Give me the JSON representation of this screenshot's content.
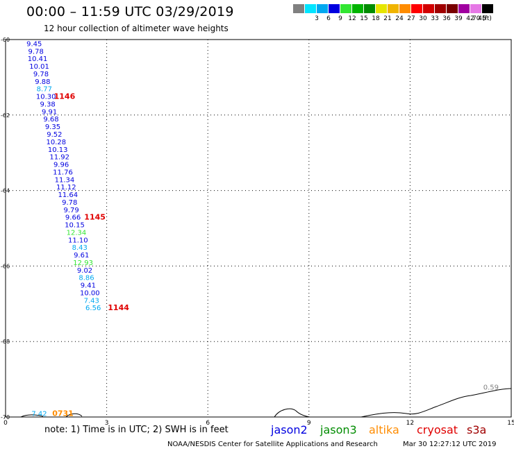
{
  "header": {
    "title": "00:00 – 11:59 UTC 03/29/2019",
    "subtitle": "12 hour collection of altimeter wave heights"
  },
  "colorbar": {
    "unit": "70 (ft)",
    "swatches": [
      {
        "color": "#808080",
        "label": ""
      },
      {
        "color": "#00e5ff",
        "label": "3"
      },
      {
        "color": "#00a8f0",
        "label": "6"
      },
      {
        "color": "#0000e0",
        "label": "9"
      },
      {
        "color": "#32e632",
        "label": "12"
      },
      {
        "color": "#00b400",
        "label": "15"
      },
      {
        "color": "#008c00",
        "label": "18"
      },
      {
        "color": "#e6e600",
        "label": "21"
      },
      {
        "color": "#f0b400",
        "label": "24"
      },
      {
        "color": "#ff8c00",
        "label": "27"
      },
      {
        "color": "#ff0000",
        "label": "30"
      },
      {
        "color": "#d20000",
        "label": "33"
      },
      {
        "color": "#a00000",
        "label": "36"
      },
      {
        "color": "#780000",
        "label": "39"
      },
      {
        "color": "#a000a0",
        "label": "42"
      },
      {
        "color": "#e678e6",
        "label": "45"
      },
      {
        "color": "#000000",
        "label": ""
      }
    ]
  },
  "chart_data": {
    "type": "scatter",
    "title": "00:00 – 11:59 UTC 03/29/2019",
    "subtitle": "12 hour collection of altimeter wave heights",
    "xlim": [
      0,
      15
    ],
    "ylim": [
      -70,
      -60
    ],
    "x_ticks": [
      "0",
      "3",
      "6",
      "9",
      "12",
      "15"
    ],
    "y_ticks": [
      "-60",
      "-62",
      "-64",
      "-66",
      "-68",
      "-70"
    ],
    "grid": true,
    "points": [
      {
        "x": 0.85,
        "y": -60.1,
        "value": "9.45",
        "color": "#0000e0"
      },
      {
        "x": 0.9,
        "y": -60.3,
        "value": "9.78",
        "color": "#0000e0"
      },
      {
        "x": 0.95,
        "y": -60.5,
        "value": "10.41",
        "color": "#0000e0"
      },
      {
        "x": 1.0,
        "y": -60.7,
        "value": "10.01",
        "color": "#0000e0"
      },
      {
        "x": 1.05,
        "y": -60.9,
        "value": "9.78",
        "color": "#0000e0"
      },
      {
        "x": 1.1,
        "y": -61.1,
        "value": "9.88",
        "color": "#0000e0"
      },
      {
        "x": 1.15,
        "y": -61.3,
        "value": "8.77",
        "color": "#00a8f0"
      },
      {
        "x": 1.2,
        "y": -61.5,
        "value": "10.30",
        "color": "#0000e0"
      },
      {
        "x": 1.25,
        "y": -61.7,
        "value": "9.38",
        "color": "#0000e0"
      },
      {
        "x": 1.3,
        "y": -61.9,
        "value": "9.91",
        "color": "#0000e0"
      },
      {
        "x": 1.35,
        "y": -62.1,
        "value": "9.68",
        "color": "#0000e0"
      },
      {
        "x": 1.4,
        "y": -62.3,
        "value": "9.35",
        "color": "#0000e0"
      },
      {
        "x": 1.45,
        "y": -62.5,
        "value": "9.52",
        "color": "#0000e0"
      },
      {
        "x": 1.5,
        "y": -62.7,
        "value": "10.28",
        "color": "#0000e0"
      },
      {
        "x": 1.55,
        "y": -62.9,
        "value": "10.13",
        "color": "#0000e0"
      },
      {
        "x": 1.6,
        "y": -63.1,
        "value": "11.92",
        "color": "#0000e0"
      },
      {
        "x": 1.65,
        "y": -63.3,
        "value": "9.96",
        "color": "#0000e0"
      },
      {
        "x": 1.7,
        "y": -63.5,
        "value": "11.76",
        "color": "#0000e0"
      },
      {
        "x": 1.75,
        "y": -63.7,
        "value": "11.34",
        "color": "#0000e0"
      },
      {
        "x": 1.8,
        "y": -63.9,
        "value": "11.12",
        "color": "#0000e0"
      },
      {
        "x": 1.85,
        "y": -64.1,
        "value": "11.64",
        "color": "#0000e0"
      },
      {
        "x": 1.9,
        "y": -64.3,
        "value": "9.78",
        "color": "#0000e0"
      },
      {
        "x": 1.95,
        "y": -64.5,
        "value": "9.79",
        "color": "#0000e0"
      },
      {
        "x": 2.0,
        "y": -64.7,
        "value": "9.66",
        "color": "#0000e0"
      },
      {
        "x": 2.05,
        "y": -64.9,
        "value": "10.15",
        "color": "#0000e0"
      },
      {
        "x": 2.1,
        "y": -65.1,
        "value": "12.34",
        "color": "#32e632"
      },
      {
        "x": 2.15,
        "y": -65.3,
        "value": "11.10",
        "color": "#0000e0"
      },
      {
        "x": 2.2,
        "y": -65.5,
        "value": "8.43",
        "color": "#00a8f0"
      },
      {
        "x": 2.25,
        "y": -65.7,
        "value": "9.61",
        "color": "#0000e0"
      },
      {
        "x": 2.3,
        "y": -65.9,
        "value": "12.93",
        "color": "#32e632"
      },
      {
        "x": 2.35,
        "y": -66.1,
        "value": "9.02",
        "color": "#0000e0"
      },
      {
        "x": 2.4,
        "y": -66.3,
        "value": "8.86",
        "color": "#00a8f0"
      },
      {
        "x": 2.45,
        "y": -66.5,
        "value": "9.41",
        "color": "#0000e0"
      },
      {
        "x": 2.5,
        "y": -66.7,
        "value": "10.00",
        "color": "#0000e0"
      },
      {
        "x": 2.55,
        "y": -66.9,
        "value": "7.43",
        "color": "#00a8f0"
      },
      {
        "x": 2.6,
        "y": -67.1,
        "value": "6.56",
        "color": "#00a8f0"
      },
      {
        "x": 1.0,
        "y": -69.9,
        "value": "7.42",
        "color": "#00a8f0"
      },
      {
        "x": 14.4,
        "y": -69.2,
        "value": "0.59",
        "color": "#808080"
      }
    ],
    "time_labels": [
      {
        "x": 1.75,
        "y": -61.5,
        "value": "1146",
        "color": "#e00000"
      },
      {
        "x": 2.65,
        "y": -64.7,
        "value": "1145",
        "color": "#e00000"
      },
      {
        "x": 3.35,
        "y": -67.1,
        "value": "1144",
        "color": "#e00000"
      },
      {
        "x": 1.7,
        "y": -69.9,
        "value": "0731",
        "color": "#ff8c00"
      }
    ]
  },
  "footer": {
    "note": "note: 1) Time is in UTC; 2) SWH is in feet",
    "satellites": [
      {
        "name": "jason2",
        "color": "#0000e0"
      },
      {
        "name": "jason3",
        "color": "#008c00"
      },
      {
        "name": "altika",
        "color": "#ff8c00"
      },
      {
        "name": "cryosat",
        "color": "#e00000"
      },
      {
        "name": "s3a",
        "color": "#a00000"
      }
    ],
    "credit": "NOAA/NESDIS Center for Satellite Applications and Research",
    "stamp": "Mar 30 12:27:12 UTC 2019"
  }
}
